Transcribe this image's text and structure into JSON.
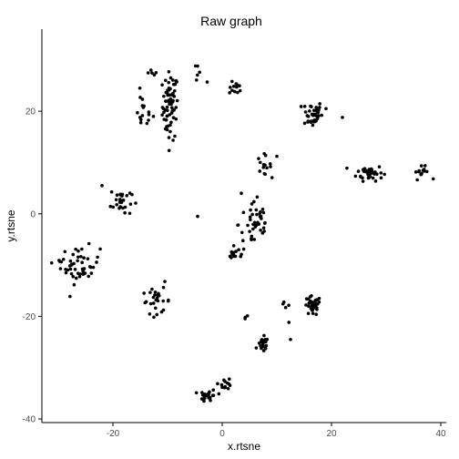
{
  "chart_data": {
    "type": "scatter",
    "title": "Raw graph",
    "xlabel": "x.rtsne",
    "ylabel": "y.rtsne",
    "xlim": [
      -33,
      41
    ],
    "ylim": [
      -40.7,
      36
    ],
    "xticks": [
      -20,
      0,
      20,
      40
    ],
    "yticks": [
      -40,
      -20,
      0,
      20
    ],
    "grid": false,
    "legend": "none",
    "point_color": "#000000",
    "clusters": [
      {
        "center": [
          -9.5,
          21
        ],
        "spread": [
          1.2,
          5.5
        ],
        "count": 70
      },
      {
        "center": [
          -14.5,
          20
        ],
        "spread": [
          1.5,
          3.0
        ],
        "count": 16
      },
      {
        "center": [
          -13,
          27
        ],
        "spread": [
          1.0,
          1.0
        ],
        "count": 5
      },
      {
        "center": [
          -4,
          26.5
        ],
        "spread": [
          2.0,
          2.0
        ],
        "count": 5
      },
      {
        "center": [
          2.5,
          24.5
        ],
        "spread": [
          1.0,
          1.0
        ],
        "count": 12
      },
      {
        "center": [
          16.5,
          19.5
        ],
        "spread": [
          1.5,
          2.2
        ],
        "count": 40
      },
      {
        "center": [
          27,
          8
        ],
        "spread": [
          2.0,
          1.3
        ],
        "count": 40
      },
      {
        "center": [
          36.5,
          8
        ],
        "spread": [
          1.3,
          1.0
        ],
        "count": 14
      },
      {
        "center": [
          -18.5,
          2.5
        ],
        "spread": [
          1.6,
          2.5
        ],
        "count": 28
      },
      {
        "center": [
          -26,
          -10
        ],
        "spread": [
          3.0,
          3.0
        ],
        "count": 45
      },
      {
        "center": [
          -29.5,
          -9
        ],
        "spread": [
          0.8,
          0.5
        ],
        "count": 4
      },
      {
        "center": [
          -12,
          -17
        ],
        "spread": [
          2.2,
          2.0
        ],
        "count": 26
      },
      {
        "center": [
          7.5,
          9.5
        ],
        "spread": [
          1.2,
          1.6
        ],
        "count": 14
      },
      {
        "center": [
          6,
          -2
        ],
        "spread": [
          2.5,
          4.5
        ],
        "count": 44
      },
      {
        "center": [
          2.5,
          -8
        ],
        "spread": [
          1.5,
          0.9
        ],
        "count": 12
      },
      {
        "center": [
          16.5,
          -18
        ],
        "spread": [
          1.3,
          1.6
        ],
        "count": 38
      },
      {
        "center": [
          11.5,
          -19.5
        ],
        "spread": [
          0.8,
          1.8
        ],
        "count": 5
      },
      {
        "center": [
          7.5,
          -25.5
        ],
        "spread": [
          0.8,
          1.2
        ],
        "count": 24
      },
      {
        "center": [
          5,
          -20
        ],
        "spread": [
          0.6,
          0.3
        ],
        "count": 3
      },
      {
        "center": [
          -2.5,
          -35.5
        ],
        "spread": [
          1.3,
          1.0
        ],
        "count": 26
      },
      {
        "center": [
          0.5,
          -33
        ],
        "spread": [
          1.0,
          1.0
        ],
        "count": 14
      }
    ],
    "extra_points": [
      [
        -4.5,
        28.8
      ],
      [
        22,
        18.8
      ],
      [
        -10.5,
        -13.2
      ],
      [
        10,
        11.2
      ],
      [
        -4.5,
        -0.5
      ],
      [
        -22,
        5.5
      ],
      [
        3.5,
        4
      ],
      [
        12.5,
        -24.5
      ],
      [
        19,
        20.5
      ]
    ]
  }
}
